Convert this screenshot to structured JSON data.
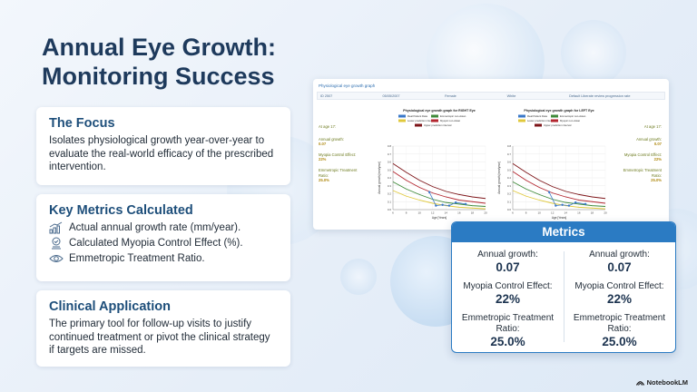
{
  "title": "Annual Eye Growth: Monitoring Success",
  "focus": {
    "heading": "The Focus",
    "text": "Isolates physiological growth year-over-year to evaluate the real-world efficacy of the prescribed intervention."
  },
  "key_metrics": {
    "heading": "Key Metrics Calculated",
    "items": [
      {
        "icon": "growth-chart-icon",
        "label": "Actual annual growth rate (mm/year)."
      },
      {
        "icon": "shield-check-icon",
        "label": "Calculated Myopia Control Effect (%)."
      },
      {
        "icon": "eye-icon",
        "label": "Emmetropic Treatment Ratio."
      }
    ]
  },
  "clinical": {
    "heading": "Clinical Application",
    "text": "The primary tool for follow-up visits to justify continued treatment or pivot the clinical strategy if targets are missed."
  },
  "screenshot": {
    "header": "Physiological eye growth graph",
    "bar": [
      "ID 2507",
      "05/05/2007",
      "Female",
      "White",
      "Default Liberate review progression rate"
    ],
    "left_panel": {
      "age": "At age 17:",
      "annual_growth_label": "Annual growth:",
      "annual_growth_value": "0.07",
      "myopia_label": "Myopia Control Effect:",
      "myopia_value": "22%",
      "ratio_label": "Emmetropic Treatment Ratio:",
      "ratio_value": "25.0%"
    },
    "right_panel": {
      "age": "At age 17:",
      "annual_growth_label": "Annual growth:",
      "annual_growth_value": "0.07",
      "myopia_label": "Myopia Control Effect:",
      "myopia_value": "22%",
      "ratio_label": "Emmetropic Treatment Ratio:",
      "ratio_value": "25.0%"
    },
    "chart_right_title": "Physiological eye growth graph for RIGHT Eye",
    "chart_left_title": "Physiological eye growth graph for LEFT Eye",
    "legend": [
      "Real Patient Data",
      "Emmetropic non-Asian",
      "Lower prediction interval",
      "Myopic non-Asian",
      "Upper prediction interval"
    ],
    "xlabel": "Age [Years]",
    "ylabel": "Annual growth [mm/year]",
    "x_ticks": [
      "6",
      "8",
      "10",
      "12",
      "14",
      "16",
      "18",
      "20"
    ],
    "y_ticks": [
      "0.0",
      "0.1",
      "0.2",
      "0.3",
      "0.4",
      "0.5",
      "0.6",
      "0.7",
      "0.8"
    ]
  },
  "metrics_panel": {
    "title": "Metrics",
    "columns": [
      {
        "annual_growth_label": "Annual growth:",
        "annual_growth_value": "0.07",
        "myopia_label": "Myopia Control Effect:",
        "myopia_value": "22%",
        "ratio_label": "Emmetropic Treatment Ratio:",
        "ratio_value": "25.0%"
      },
      {
        "annual_growth_label": "Annual growth:",
        "annual_growth_value": "0.07",
        "myopia_label": "Myopia Control Effect:",
        "myopia_value": "22%",
        "ratio_label": "Emmetropic Treatment Ratio:",
        "ratio_value": "25.0%"
      }
    ]
  },
  "brand": "NotebookLM",
  "colors": {
    "accent": "#2b7bc3",
    "title": "#1e3a5c",
    "heading": "#1d4e7a",
    "patient": "#3a78c9",
    "myopic": "#b3262f",
    "emmetropic": "#3f8a3a",
    "lower": "#e0c93c",
    "upper": "#7d1418"
  },
  "chart_data": [
    {
      "type": "line",
      "title": "Physiological eye growth graph for RIGHT Eye",
      "xlabel": "Age [Years]",
      "ylabel": "Annual growth [mm/year]",
      "xlim": [
        6,
        20
      ],
      "ylim": [
        0,
        0.8
      ],
      "series": [
        {
          "name": "Upper prediction interval",
          "x": [
            6,
            8,
            10,
            12,
            14,
            16,
            18,
            20
          ],
          "y": [
            0.58,
            0.47,
            0.37,
            0.29,
            0.23,
            0.19,
            0.16,
            0.14
          ]
        },
        {
          "name": "Myopic non-Asian",
          "x": [
            6,
            8,
            10,
            12,
            14,
            16,
            18,
            20
          ],
          "y": [
            0.48,
            0.37,
            0.28,
            0.21,
            0.16,
            0.12,
            0.1,
            0.08
          ]
        },
        {
          "name": "Emmetropic non-Asian",
          "x": [
            6,
            8,
            10,
            12,
            14,
            16,
            18,
            20
          ],
          "y": [
            0.35,
            0.26,
            0.19,
            0.13,
            0.09,
            0.07,
            0.05,
            0.04
          ]
        },
        {
          "name": "Lower prediction interval",
          "x": [
            6,
            8,
            10,
            12,
            14,
            16,
            18,
            20
          ],
          "y": [
            0.24,
            0.17,
            0.12,
            0.08,
            0.05,
            0.03,
            0.02,
            0.01
          ]
        },
        {
          "name": "Real Patient Data",
          "x": [
            11.5,
            12.5,
            13.5,
            14.5,
            15.5,
            17
          ],
          "y": [
            0.22,
            0.05,
            0.06,
            0.05,
            0.09,
            0.07
          ]
        }
      ]
    },
    {
      "type": "line",
      "title": "Physiological eye growth graph for LEFT Eye",
      "xlabel": "Age [Years]",
      "ylabel": "Annual growth [mm/year]",
      "xlim": [
        6,
        20
      ],
      "ylim": [
        0,
        0.8
      ],
      "series": [
        {
          "name": "Upper prediction interval",
          "x": [
            6,
            8,
            10,
            12,
            14,
            16,
            18,
            20
          ],
          "y": [
            0.58,
            0.47,
            0.37,
            0.29,
            0.23,
            0.19,
            0.16,
            0.14
          ]
        },
        {
          "name": "Myopic non-Asian",
          "x": [
            6,
            8,
            10,
            12,
            14,
            16,
            18,
            20
          ],
          "y": [
            0.48,
            0.37,
            0.28,
            0.21,
            0.16,
            0.12,
            0.1,
            0.08
          ]
        },
        {
          "name": "Emmetropic non-Asian",
          "x": [
            6,
            8,
            10,
            12,
            14,
            16,
            18,
            20
          ],
          "y": [
            0.35,
            0.26,
            0.19,
            0.13,
            0.09,
            0.07,
            0.05,
            0.04
          ]
        },
        {
          "name": "Lower prediction interval",
          "x": [
            6,
            8,
            10,
            12,
            14,
            16,
            18,
            20
          ],
          "y": [
            0.24,
            0.17,
            0.12,
            0.08,
            0.05,
            0.03,
            0.02,
            0.01
          ]
        },
        {
          "name": "Real Patient Data",
          "x": [
            11.5,
            12.5,
            13.5,
            14.5,
            15.5,
            17
          ],
          "y": [
            0.22,
            0.05,
            0.06,
            0.05,
            0.09,
            0.07
          ]
        }
      ]
    }
  ]
}
